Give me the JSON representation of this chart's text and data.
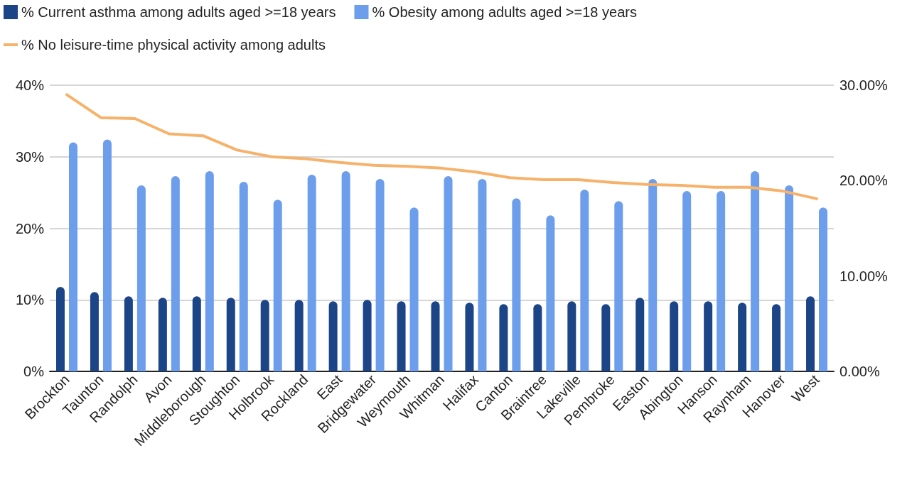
{
  "chart_data": {
    "type": "bar",
    "categories": [
      "Brockton",
      "Taunton",
      "Randolph",
      "Avon",
      "Middleborough",
      "Stoughton",
      "Holbrook",
      "Rockland",
      "East",
      "Bridgewater",
      "Weymouth",
      "Whitman",
      "Halifax",
      "Canton",
      "Braintree",
      "Lakeville",
      "Pembroke",
      "Easton",
      "Abington",
      "Hanson",
      "Raynham",
      "Hanover",
      "West"
    ],
    "series": [
      {
        "name": "% Current asthma among adults aged >=18 years",
        "color": "#1c4587",
        "values": [
          11.8,
          11.1,
          10.5,
          10.3,
          10.5,
          10.3,
          10.0,
          10.0,
          9.8,
          10.0,
          9.8,
          9.8,
          9.6,
          9.4,
          9.4,
          9.8,
          9.4,
          10.3,
          9.8,
          9.8,
          9.6,
          9.4,
          10.5
        ]
      },
      {
        "name": "% Obesity among adults aged >=18 years",
        "color": "#6d9eeb",
        "values": [
          32.0,
          32.4,
          26.0,
          27.3,
          28.0,
          26.5,
          24.0,
          27.5,
          28.0,
          26.9,
          22.9,
          27.3,
          26.9,
          24.2,
          21.8,
          25.4,
          23.8,
          26.9,
          25.2,
          25.2,
          28.0,
          26.0,
          22.9
        ]
      },
      {
        "name": "% No leisure-time physical activity among adults",
        "type": "line",
        "axis": "y2",
        "color": "#f6b26b",
        "values": [
          29.0,
          26.6,
          26.5,
          24.9,
          24.7,
          23.2,
          22.5,
          22.3,
          21.9,
          21.6,
          21.5,
          21.3,
          20.9,
          20.3,
          20.1,
          20.1,
          19.8,
          19.6,
          19.5,
          19.3,
          19.3,
          18.9,
          18.1
        ]
      }
    ],
    "ylim": [
      0,
      40
    ],
    "yticks": [
      {
        "value": 0,
        "label": "0%"
      },
      {
        "value": 10,
        "label": "10%"
      },
      {
        "value": 20,
        "label": "20%"
      },
      {
        "value": 30,
        "label": "30%"
      },
      {
        "value": 40,
        "label": "40%"
      }
    ],
    "y2lim": [
      0,
      30
    ],
    "y2ticks": [
      {
        "value": 0,
        "label": "0.00%"
      },
      {
        "value": 10,
        "label": "10.00%"
      },
      {
        "value": 20,
        "label": "20.00%"
      },
      {
        "value": 30,
        "label": "30.00%"
      }
    ],
    "grid": "y",
    "legend": "top left",
    "marker": "none",
    "line_style": "solid"
  }
}
